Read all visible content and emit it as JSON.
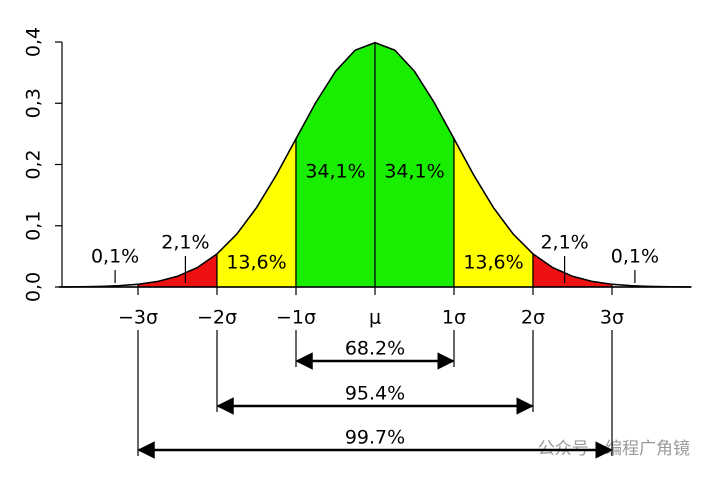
{
  "chart_data": {
    "type": "area",
    "series": [
      {
        "color": "#000000",
        "x": [
          -4,
          -3.75,
          -3.5,
          -3.25,
          -3,
          -2.75,
          -2.5,
          -2.25,
          -2,
          -1.75,
          -1.5,
          -1.25,
          -1,
          -0.75,
          -0.5,
          -0.25,
          0,
          0.25,
          0.5,
          0.75,
          1,
          1.25,
          1.5,
          1.75,
          2,
          2.25,
          2.5,
          2.75,
          3,
          3.25,
          3.5,
          3.75,
          4
        ],
        "values": [
          0.0001,
          0.0004,
          0.0009,
          0.002,
          0.0044,
          0.0091,
          0.0175,
          0.0317,
          0.054,
          0.0863,
          0.1295,
          0.1826,
          0.242,
          0.3011,
          0.3521,
          0.3867,
          0.3989,
          0.3867,
          0.3521,
          0.3011,
          0.242,
          0.1826,
          0.1295,
          0.0863,
          0.054,
          0.0317,
          0.0175,
          0.0091,
          0.0044,
          0.002,
          0.0009,
          0.0004,
          0.0001
        ]
      }
    ],
    "regions": [
      {
        "from": -4,
        "to": -3,
        "color": "#ffffff",
        "value": 0.1,
        "value_label": "0,1%"
      },
      {
        "from": -3,
        "to": -2,
        "color": "#ee1111",
        "value": 2.1,
        "value_label": "2,1%"
      },
      {
        "from": -2,
        "to": -1,
        "color": "#ffff00",
        "value": 13.6,
        "value_label": "13,6%"
      },
      {
        "from": -1,
        "to": 0,
        "color": "#1aee00",
        "value": 34.1,
        "value_label": "34,1%"
      },
      {
        "from": 0,
        "to": 1,
        "color": "#1aee00",
        "value": 34.1,
        "value_label": "34,1%"
      },
      {
        "from": 1,
        "to": 2,
        "color": "#ffff00",
        "value": 13.6,
        "value_label": "13,6%"
      },
      {
        "from": 2,
        "to": 3,
        "color": "#ee1111",
        "value": 2.1,
        "value_label": "2,1%"
      },
      {
        "from": 3,
        "to": 4,
        "color": "#ffffff",
        "value": 0.1,
        "value_label": "0,1%"
      }
    ],
    "intervals": [
      {
        "from": -1,
        "to": 1,
        "value": 68.2,
        "value_label": "68.2%"
      },
      {
        "from": -2,
        "to": 2,
        "value": 95.4,
        "value_label": "95.4%"
      },
      {
        "from": -3,
        "to": 3,
        "value": 99.7,
        "value_label": "99.7%"
      }
    ],
    "xlim": [
      -4,
      4
    ],
    "xticks": [
      {
        "value": -3,
        "label": "−3σ"
      },
      {
        "value": -2,
        "label": "−2σ"
      },
      {
        "value": -1,
        "label": "−1σ"
      },
      {
        "value": 0,
        "label": "μ"
      },
      {
        "value": 1,
        "label": "1σ"
      },
      {
        "value": 2,
        "label": "2σ"
      },
      {
        "value": 3,
        "label": "3σ"
      }
    ],
    "ylim": [
      0,
      0.4
    ],
    "yticks": [
      {
        "value": 0,
        "label": "0,0"
      },
      {
        "value": 0.1,
        "label": "0,1"
      },
      {
        "value": 0.2,
        "label": "0,2"
      },
      {
        "value": 0.3,
        "label": "0,3"
      },
      {
        "value": 0.4,
        "label": "0,4"
      }
    ],
    "watermark": "公众号 · 编程广角镜"
  }
}
